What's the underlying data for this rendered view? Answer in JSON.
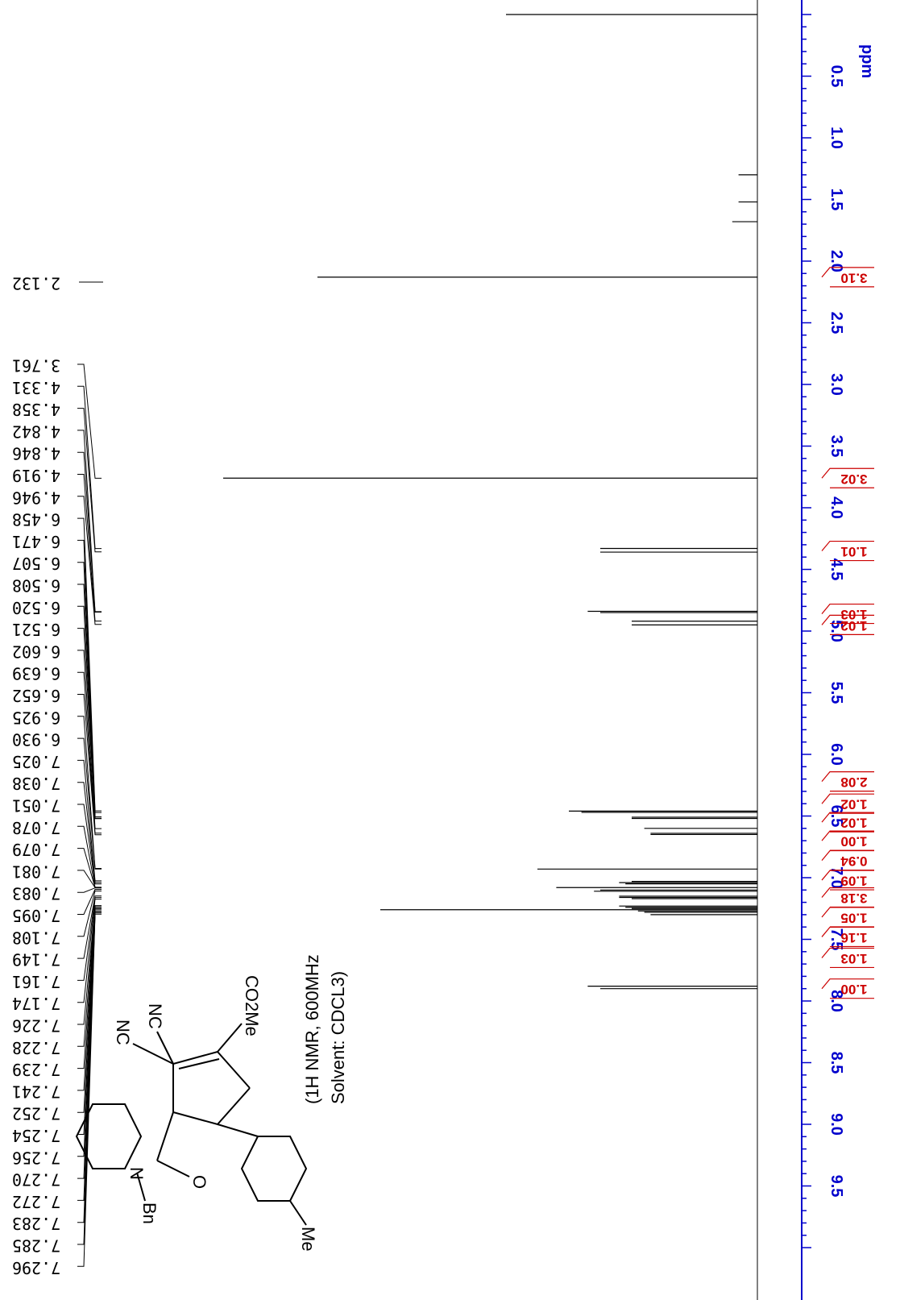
{
  "chart_data": {
    "type": "line",
    "title": "",
    "xlabel": "ppm",
    "axis_unit": "ppm",
    "xlim": [
      -0.3,
      10.0
    ],
    "x_reversed": true,
    "axis_ticks": [
      "0.5",
      "1.0",
      "1.5",
      "2.0",
      "2.5",
      "3.0",
      "3.5",
      "4.0",
      "4.5",
      "5.0",
      "5.5",
      "6.0",
      "6.5",
      "7.0",
      "7.5",
      "8.0",
      "8.5",
      "9.0",
      "9.5"
    ],
    "annotation_lines": [
      "(1H NMR, 600MHz",
      "Solvent: CDCL3)"
    ],
    "structure_labels": [
      "CO2Me",
      "Me",
      "O",
      "N",
      "Bn",
      "NC",
      "NC"
    ],
    "peak_labels": [
      "2.132",
      "3.761",
      "4.331",
      "4.358",
      "4.842",
      "4.846",
      "4.919",
      "4.946",
      "6.458",
      "6.471",
      "6.507",
      "6.508",
      "6.520",
      "6.521",
      "6.602",
      "6.639",
      "6.652",
      "6.925",
      "6.930",
      "7.025",
      "7.038",
      "7.051",
      "7.078",
      "7.079",
      "7.081",
      "7.083",
      "7.095",
      "7.108",
      "7.149",
      "7.161",
      "7.174",
      "7.226",
      "7.228",
      "7.239",
      "7.241",
      "7.252",
      "7.254",
      "7.256",
      "7.270",
      "7.272",
      "7.283",
      "7.285",
      "7.296"
    ],
    "peaks": [
      {
        "ppm": 0.0,
        "height": 0.4
      },
      {
        "ppm": 1.3,
        "height": 0.03
      },
      {
        "ppm": 1.52,
        "height": 0.03
      },
      {
        "ppm": 1.68,
        "height": 0.04
      },
      {
        "ppm": 2.13,
        "height": 0.7
      },
      {
        "ppm": 3.76,
        "height": 0.85
      },
      {
        "ppm": 4.33,
        "height": 0.25
      },
      {
        "ppm": 4.36,
        "height": 0.25
      },
      {
        "ppm": 4.84,
        "height": 0.27
      },
      {
        "ppm": 4.85,
        "height": 0.25
      },
      {
        "ppm": 4.92,
        "height": 0.2
      },
      {
        "ppm": 4.95,
        "height": 0.2
      },
      {
        "ppm": 6.46,
        "height": 0.3
      },
      {
        "ppm": 6.47,
        "height": 0.28
      },
      {
        "ppm": 6.51,
        "height": 0.2
      },
      {
        "ppm": 6.52,
        "height": 0.2
      },
      {
        "ppm": 6.6,
        "height": 0.18
      },
      {
        "ppm": 6.64,
        "height": 0.17
      },
      {
        "ppm": 6.65,
        "height": 0.17
      },
      {
        "ppm": 6.93,
        "height": 0.35
      },
      {
        "ppm": 7.03,
        "height": 0.2
      },
      {
        "ppm": 7.04,
        "height": 0.22
      },
      {
        "ppm": 7.05,
        "height": 0.21
      },
      {
        "ppm": 7.08,
        "height": 0.32
      },
      {
        "ppm": 7.1,
        "height": 0.25
      },
      {
        "ppm": 7.11,
        "height": 0.26
      },
      {
        "ppm": 7.15,
        "height": 0.22
      },
      {
        "ppm": 7.16,
        "height": 0.22
      },
      {
        "ppm": 7.17,
        "height": 0.2
      },
      {
        "ppm": 7.23,
        "height": 0.22
      },
      {
        "ppm": 7.24,
        "height": 0.21
      },
      {
        "ppm": 7.25,
        "height": 0.2
      },
      {
        "ppm": 7.26,
        "height": 0.6
      },
      {
        "ppm": 7.27,
        "height": 0.19
      },
      {
        "ppm": 7.28,
        "height": 0.18
      },
      {
        "ppm": 7.3,
        "height": 0.17
      },
      {
        "ppm": 7.88,
        "height": 0.27
      },
      {
        "ppm": 7.9,
        "height": 0.25
      }
    ],
    "integrals": [
      {
        "ppm": 2.13,
        "label": "3.10"
      },
      {
        "ppm": 3.76,
        "label": "3.02"
      },
      {
        "ppm": 4.35,
        "label": "1.01"
      },
      {
        "ppm": 4.86,
        "label": "1.03"
      },
      {
        "ppm": 4.95,
        "label": "1.02"
      },
      {
        "ppm": 6.22,
        "label": "2.08"
      },
      {
        "ppm": 6.4,
        "label": "1.02"
      },
      {
        "ppm": 6.55,
        "label": "1.02"
      },
      {
        "ppm": 6.7,
        "label": "1.00"
      },
      {
        "ppm": 6.86,
        "label": "0.94"
      },
      {
        "ppm": 7.02,
        "label": "1.09"
      },
      {
        "ppm": 7.16,
        "label": "3.18"
      },
      {
        "ppm": 7.32,
        "label": "1.05"
      },
      {
        "ppm": 7.48,
        "label": "1.16"
      },
      {
        "ppm": 7.65,
        "label": "1.03"
      },
      {
        "ppm": 7.9,
        "label": "1.00"
      }
    ],
    "colors": {
      "axis": "#0000cc",
      "integral": "#cc0000",
      "spectrum": "#000000"
    }
  }
}
